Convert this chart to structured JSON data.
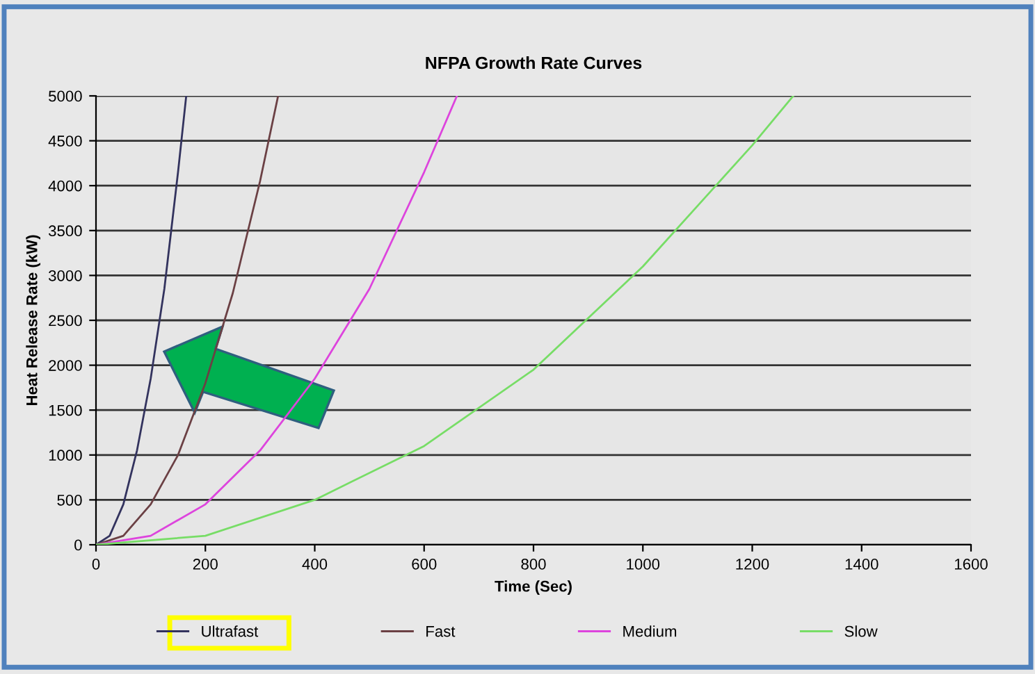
{
  "chart_data": {
    "type": "line",
    "title": "NFPA Growth Rate Curves",
    "xlabel": "Time (Sec)",
    "ylabel": "Heat Release Rate (kW)",
    "series": [
      {
        "name": "Ultrafast",
        "color": "#33335e",
        "x": [
          0,
          25,
          50,
          75,
          100,
          125,
          150,
          165
        ],
        "values": [
          0,
          100,
          450,
          1050,
          1850,
          2850,
          4150,
          5000
        ]
      },
      {
        "name": "Fast",
        "color": "#6b4044",
        "x": [
          0,
          50,
          100,
          150,
          200,
          250,
          300,
          333
        ],
        "values": [
          0,
          100,
          450,
          1000,
          1800,
          2800,
          4050,
          5000
        ]
      },
      {
        "name": "Medium",
        "color": "#dd44dd",
        "x": [
          0,
          100,
          200,
          300,
          400,
          500,
          600,
          660
        ],
        "values": [
          0,
          100,
          450,
          1050,
          1850,
          2850,
          4150,
          5000
        ]
      },
      {
        "name": "Slow",
        "color": "#77dd66",
        "x": [
          0,
          200,
          400,
          600,
          800,
          1000,
          1200,
          1275
        ],
        "values": [
          0,
          100,
          500,
          1100,
          1950,
          3100,
          4450,
          5000
        ]
      }
    ],
    "xlim": [
      0,
      1600
    ],
    "xticks": [
      0,
      200,
      400,
      600,
      800,
      1000,
      1200,
      1400,
      1600
    ],
    "ylim": [
      0,
      5000
    ],
    "yticks": [
      0,
      500,
      1000,
      1500,
      2000,
      2500,
      3000,
      3500,
      4000,
      4500,
      5000
    ],
    "grid": "y",
    "legend": "bottom",
    "marker": "none",
    "line_style": "solid"
  }
}
